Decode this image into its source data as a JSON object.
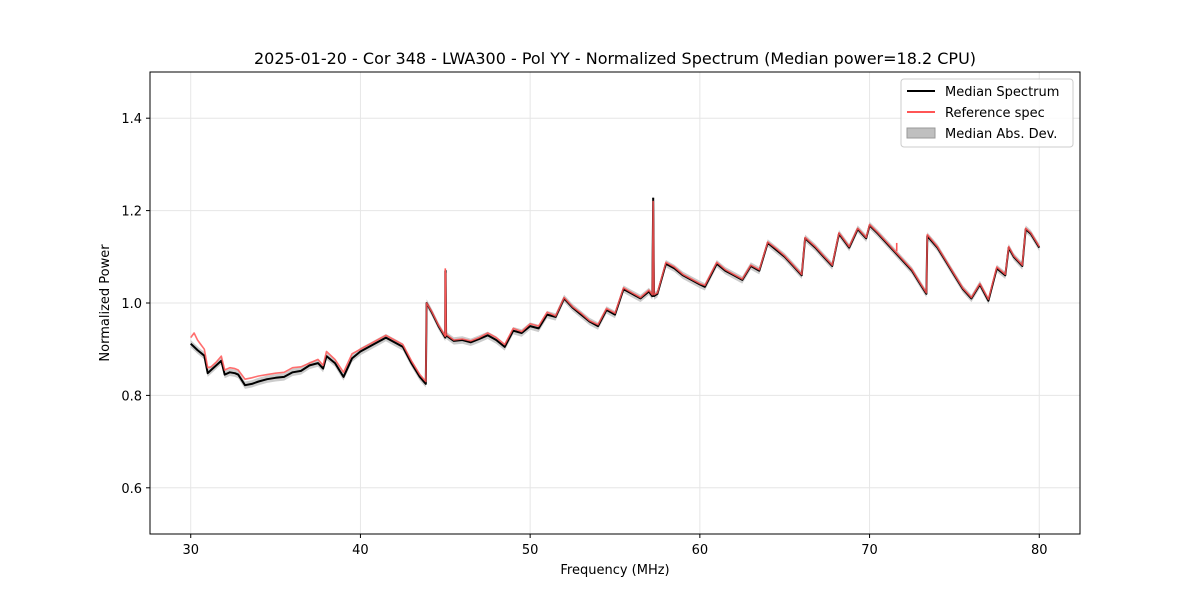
{
  "chart_data": {
    "type": "line",
    "title": "2025-01-20 - Cor 348 - LWA300 - Pol YY - Normalized Spectrum (Median power=18.2 CPU)",
    "xlabel": "Frequency (MHz)",
    "ylabel": "Normalized Power",
    "xlim": [
      27.6,
      82.4
    ],
    "ylim": [
      0.5,
      1.5
    ],
    "xticks": [
      30,
      40,
      50,
      60,
      70,
      80
    ],
    "yticks": [
      0.6,
      0.8,
      1.0,
      1.2,
      1.4
    ],
    "xtick_labels": [
      "30",
      "40",
      "50",
      "60",
      "70",
      "80"
    ],
    "ytick_labels": [
      "0.6",
      "0.8",
      "1.0",
      "1.2",
      "1.4"
    ],
    "grid": true,
    "legend_position": "top-right",
    "legend": [
      {
        "label": "Median Spectrum",
        "kind": "line",
        "color": "#000000"
      },
      {
        "label": "Reference spec",
        "kind": "line",
        "color": "#ff5555"
      },
      {
        "label": "Median Abs. Dev.",
        "kind": "band",
        "color": "#bfbfbf"
      }
    ],
    "mad_halfwidth": 0.008,
    "series": [
      {
        "name": "Median Spectrum",
        "color": "#000000",
        "x": [
          30.0,
          30.2,
          30.4,
          30.6,
          30.8,
          31.0,
          31.2,
          31.5,
          31.8,
          32.0,
          32.3,
          32.6,
          32.8,
          33.2,
          33.6,
          34.0,
          34.5,
          35.0,
          35.5,
          36.0,
          36.5,
          37.0,
          37.5,
          37.8,
          38.0,
          38.5,
          39.0,
          39.5,
          40.0,
          40.5,
          41.0,
          41.5,
          42.0,
          42.5,
          43.0,
          43.5,
          43.85,
          43.9,
          44.2,
          44.6,
          45.0,
          45.02,
          45.05,
          45.5,
          46.0,
          46.5,
          47.0,
          47.5,
          48.0,
          48.5,
          49.0,
          49.5,
          50.0,
          50.5,
          51.0,
          51.5,
          52.0,
          52.5,
          53.0,
          53.5,
          54.0,
          54.5,
          55.0,
          55.5,
          56.0,
          56.5,
          57.0,
          57.2,
          57.25,
          57.3,
          57.5,
          58.0,
          58.5,
          59.0,
          59.5,
          60.0,
          60.3,
          61.0,
          61.5,
          62.0,
          62.5,
          63.0,
          63.5,
          64.0,
          64.5,
          65.0,
          65.5,
          66.0,
          66.2,
          66.8,
          67.3,
          67.8,
          68.2,
          68.8,
          69.3,
          69.8,
          70.0,
          70.5,
          71.0,
          71.5,
          72.0,
          72.5,
          73.0,
          73.35,
          73.4,
          74.0,
          74.5,
          75.0,
          75.5,
          76.0,
          76.5,
          77.0,
          77.5,
          78.0,
          78.2,
          78.5,
          79.0,
          79.2,
          79.5,
          80.0
        ],
        "values": [
          0.912,
          0.905,
          0.898,
          0.892,
          0.886,
          0.848,
          0.855,
          0.865,
          0.875,
          0.845,
          0.85,
          0.848,
          0.845,
          0.822,
          0.825,
          0.83,
          0.835,
          0.838,
          0.84,
          0.85,
          0.853,
          0.865,
          0.87,
          0.858,
          0.885,
          0.87,
          0.84,
          0.88,
          0.895,
          0.905,
          0.915,
          0.925,
          0.915,
          0.905,
          0.87,
          0.84,
          0.825,
          1.0,
          0.98,
          0.95,
          0.925,
          1.07,
          0.93,
          0.918,
          0.92,
          0.915,
          0.922,
          0.93,
          0.92,
          0.905,
          0.94,
          0.935,
          0.95,
          0.945,
          0.975,
          0.97,
          1.01,
          0.99,
          0.975,
          0.96,
          0.95,
          0.985,
          0.975,
          1.03,
          1.02,
          1.01,
          1.025,
          1.015,
          1.225,
          1.015,
          1.02,
          1.085,
          1.075,
          1.06,
          1.05,
          1.04,
          1.035,
          1.085,
          1.07,
          1.06,
          1.05,
          1.08,
          1.07,
          1.13,
          1.115,
          1.1,
          1.08,
          1.06,
          1.14,
          1.12,
          1.1,
          1.08,
          1.15,
          1.12,
          1.16,
          1.14,
          1.168,
          1.15,
          1.13,
          1.11,
          1.09,
          1.07,
          1.04,
          1.02,
          1.145,
          1.12,
          1.09,
          1.06,
          1.03,
          1.01,
          1.04,
          1.005,
          1.075,
          1.06,
          1.12,
          1.1,
          1.08,
          1.16,
          1.15,
          1.12
        ],
        "spikes": [
          [
            45.0,
            1.07
          ],
          [
            57.25,
            1.228
          ]
        ]
      },
      {
        "name": "Reference spec",
        "color": "#ff5555",
        "x": [
          30.0,
          30.2,
          30.4,
          30.6,
          30.8,
          31.0,
          31.2,
          31.5,
          31.8,
          32.0,
          32.3,
          32.6,
          32.8,
          33.2,
          33.6,
          34.0,
          34.5,
          35.0,
          35.5,
          36.0,
          36.5,
          37.0,
          37.5,
          37.8,
          38.0,
          38.5,
          39.0,
          39.5,
          40.0,
          40.5,
          41.0,
          41.5,
          42.0,
          42.5,
          43.0,
          43.5,
          43.85,
          43.9,
          44.2,
          44.6,
          45.0,
          45.02,
          45.05,
          45.5,
          46.0,
          46.5,
          47.0,
          47.5,
          48.0,
          48.5,
          49.0,
          49.5,
          50.0,
          50.5,
          51.0,
          51.5,
          52.0,
          52.5,
          53.0,
          53.5,
          54.0,
          54.5,
          55.0,
          55.5,
          56.0,
          56.5,
          57.0,
          57.2,
          57.25,
          57.3,
          57.5,
          58.0,
          58.5,
          59.0,
          59.5,
          60.0,
          60.3,
          61.0,
          61.5,
          62.0,
          62.5,
          63.0,
          63.5,
          64.0,
          64.5,
          65.0,
          65.5,
          66.0,
          66.2,
          66.8,
          67.3,
          67.8,
          68.2,
          68.8,
          69.3,
          69.8,
          70.0,
          70.5,
          71.0,
          71.5,
          72.0,
          72.5,
          73.0,
          73.35,
          73.4,
          74.0,
          74.5,
          75.0,
          75.5,
          76.0,
          76.5,
          77.0,
          77.5,
          78.0,
          78.2,
          78.5,
          79.0,
          79.2,
          79.5,
          80.0
        ],
        "values": [
          0.925,
          0.935,
          0.92,
          0.91,
          0.9,
          0.86,
          0.862,
          0.872,
          0.885,
          0.855,
          0.86,
          0.858,
          0.855,
          0.835,
          0.838,
          0.842,
          0.845,
          0.848,
          0.85,
          0.86,
          0.862,
          0.87,
          0.878,
          0.865,
          0.895,
          0.878,
          0.85,
          0.89,
          0.9,
          0.91,
          0.92,
          0.93,
          0.92,
          0.91,
          0.875,
          0.845,
          0.83,
          1.0,
          0.982,
          0.952,
          0.928,
          1.065,
          0.932,
          0.92,
          0.922,
          0.918,
          0.925,
          0.935,
          0.925,
          0.91,
          0.945,
          0.938,
          0.955,
          0.95,
          0.98,
          0.972,
          1.012,
          0.992,
          0.978,
          0.962,
          0.953,
          0.988,
          0.978,
          1.033,
          1.022,
          1.012,
          1.028,
          1.018,
          1.22,
          1.018,
          1.022,
          1.088,
          1.078,
          1.062,
          1.052,
          1.042,
          1.038,
          1.088,
          1.072,
          1.062,
          1.052,
          1.082,
          1.072,
          1.132,
          1.118,
          1.102,
          1.082,
          1.062,
          1.142,
          1.122,
          1.102,
          1.082,
          1.152,
          1.122,
          1.162,
          1.142,
          1.17,
          1.152,
          1.132,
          1.112,
          1.092,
          1.072,
          1.042,
          1.022,
          1.148,
          1.122,
          1.092,
          1.062,
          1.032,
          1.012,
          1.042,
          1.008,
          1.078,
          1.062,
          1.122,
          1.102,
          1.082,
          1.162,
          1.152,
          1.122
        ],
        "spikes": [
          [
            45.0,
            1.075
          ],
          [
            71.6,
            1.13
          ]
        ]
      }
    ]
  }
}
